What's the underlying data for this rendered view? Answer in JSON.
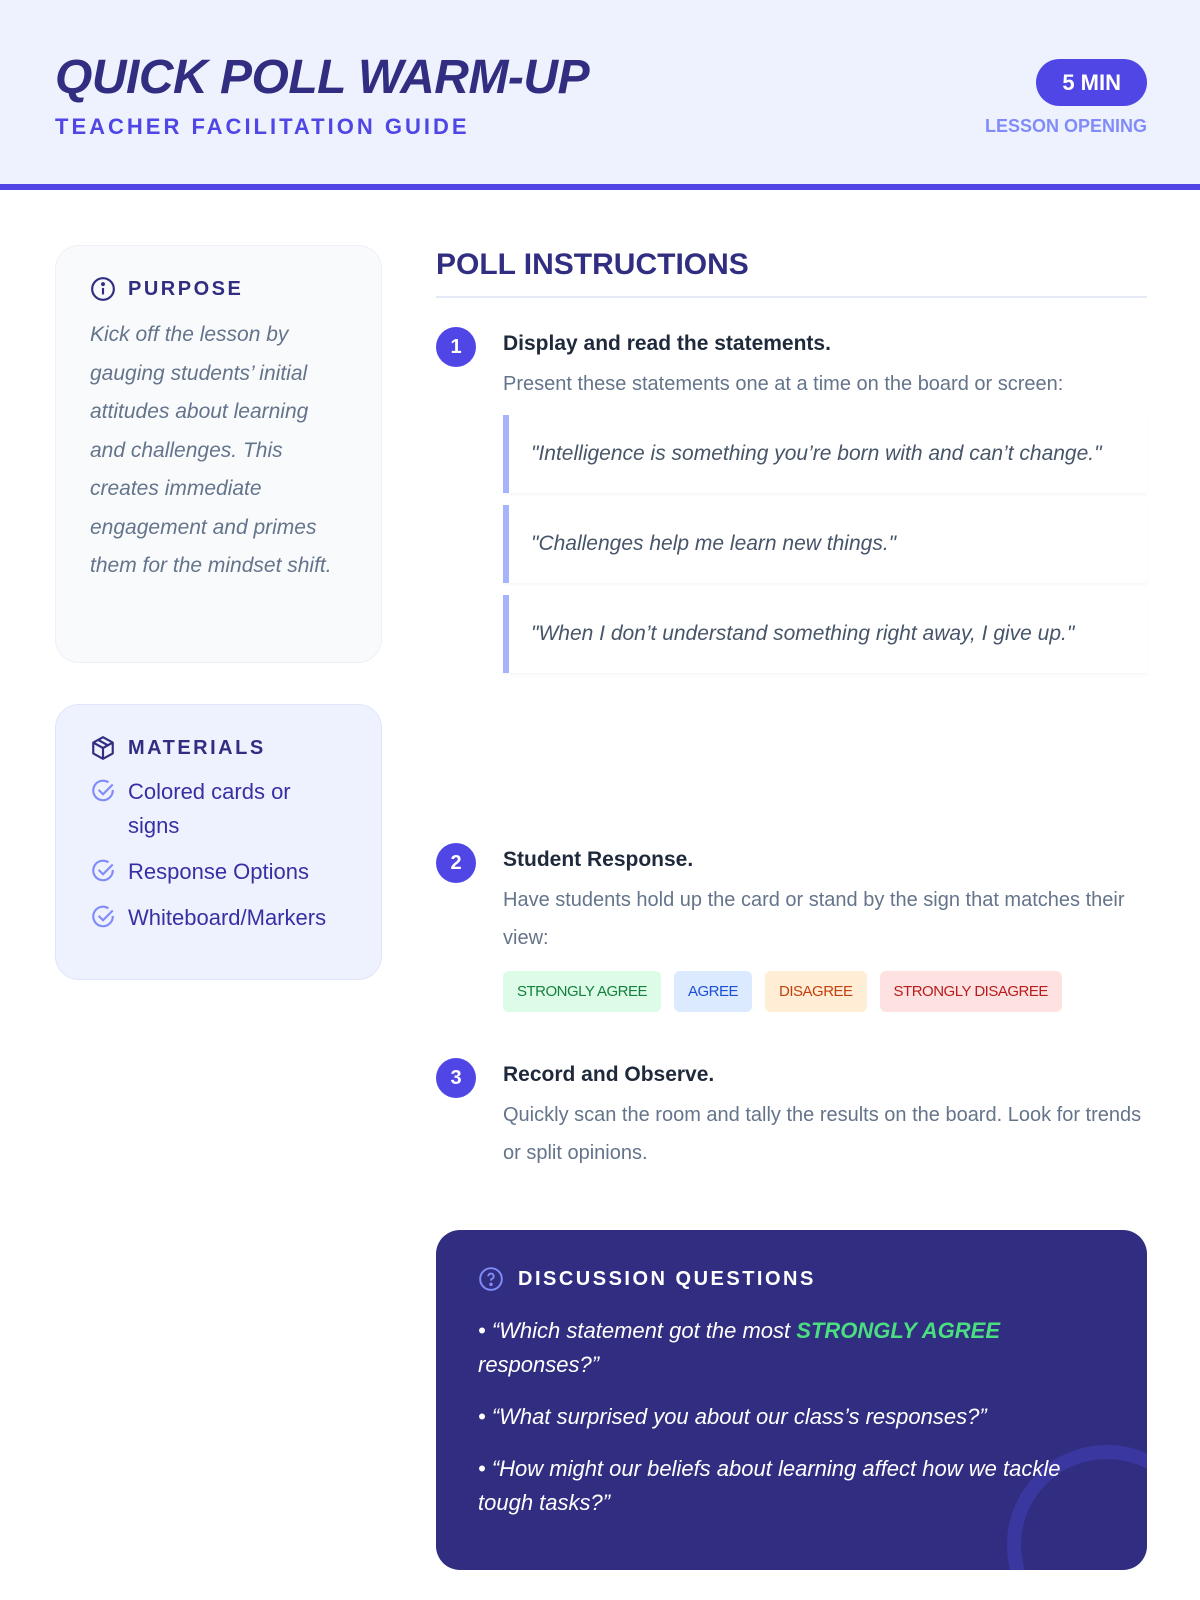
{
  "header": {
    "title": "QUICK POLL WARM-UP",
    "subtitle": "TEACHER FACILITATION GUIDE",
    "duration": "5 MIN",
    "phase": "LESSON OPENING"
  },
  "purpose": {
    "heading": "PURPOSE",
    "icon": "info-icon",
    "text": "Kick off the lesson by gauging students’ initial attitudes about learning and challenges. This creates immediate engagement and primes them for the mindset shift."
  },
  "materials": {
    "heading": "MATERIALS",
    "icon": "box-icon",
    "items": [
      "Colored cards or signs",
      "Response Options",
      "Whiteboard/Markers"
    ]
  },
  "instructions": {
    "title": "POLL INSTRUCTIONS",
    "steps": [
      {
        "number": "1",
        "heading": "Display and read the statements.",
        "text": "Present these statements one at a time on the board or screen:",
        "quotes": [
          "\"Intelligence is something you’re born with and can’t change.\"",
          "\"Challenges help me learn new things.\"",
          "\"When I don’t understand something right away, I give up.\""
        ]
      },
      {
        "number": "2",
        "heading": "Student Response.",
        "text": "Have students hold up the card or stand by the sign that matches their view:",
        "options": [
          {
            "label": "STRONGLY AGREE",
            "bg": "#dcfce7",
            "color": "#15803d"
          },
          {
            "label": "AGREE",
            "bg": "#dbeafe",
            "color": "#1d4ed8"
          },
          {
            "label": "DISAGREE",
            "bg": "#ffedd5",
            "color": "#c2410c"
          },
          {
            "label": "STRONGLY DISAGREE",
            "bg": "#fee2e2",
            "color": "#b91c1c"
          }
        ]
      },
      {
        "number": "3",
        "heading": "Record and Observe.",
        "text": "Quickly scan the room and tally the results on the board. Look for trends or split opinions."
      }
    ]
  },
  "discussion": {
    "heading": "DISCUSSION QUESTIONS",
    "icon": "question-circle-icon",
    "q1_pre": "• “Which statement got the most ",
    "q1_highlight": "STRONGLY AGREE",
    "q1_post": " responses?”",
    "q2": "• “What surprised you about our class’s responses?”",
    "q3": "• “How might our beliefs about learning affect how we tackle tough tasks?”"
  },
  "colors": {
    "accent": "#4f46e5",
    "dark": "#312e81",
    "highlight": "#4ade80"
  }
}
